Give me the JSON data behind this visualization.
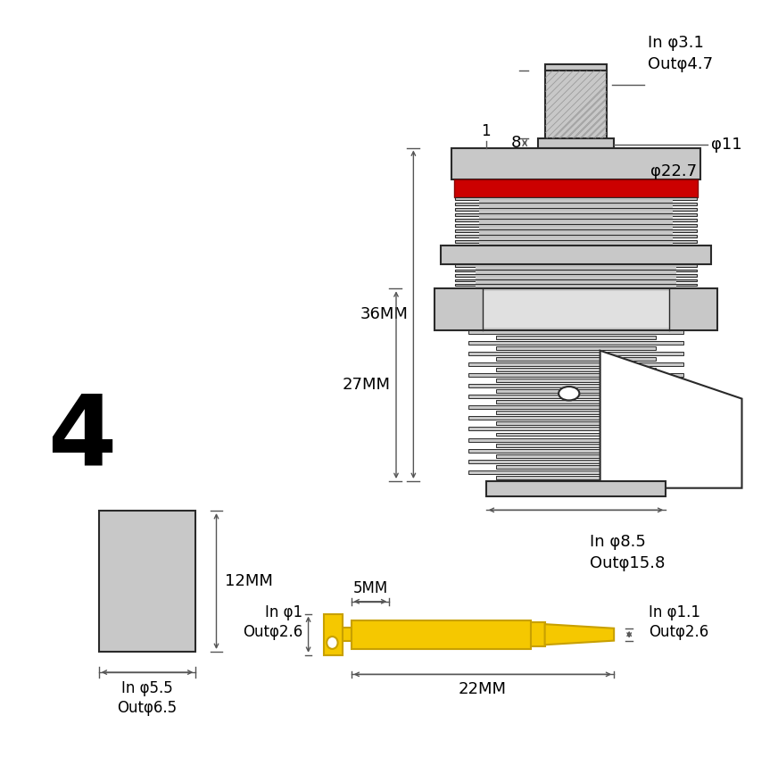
{
  "bg_color": "#ffffff",
  "gray_color": "#c8c8c8",
  "gray_light": "#e0e0e0",
  "gray_dark": "#909090",
  "red_color": "#cc0000",
  "yellow_color": "#f5c800",
  "yellow_edge": "#c8a000",
  "black": "#000000",
  "line_color": "#2a2a2a",
  "dim_color": "#555555",
  "diagram_labels": {
    "top_pin": "In φ3.1\nOutφ4.7",
    "flange_phi": "φ11",
    "main_phi": "φ22.7",
    "lower": "In φ8.5\nOutφ15.8",
    "dim_36": "36MM",
    "dim_8": "8",
    "dim_1": "1",
    "dim_27": "27MM",
    "pin_left": "In φ1\nOutφ2.6",
    "pin_right": "In φ1.1\nOutφ2.6",
    "dim_5": "5MM",
    "dim_22": "22MM",
    "ferrule_label": "In φ5.5\nOutφ6.5",
    "dim_12": "12MM",
    "number": "4"
  }
}
